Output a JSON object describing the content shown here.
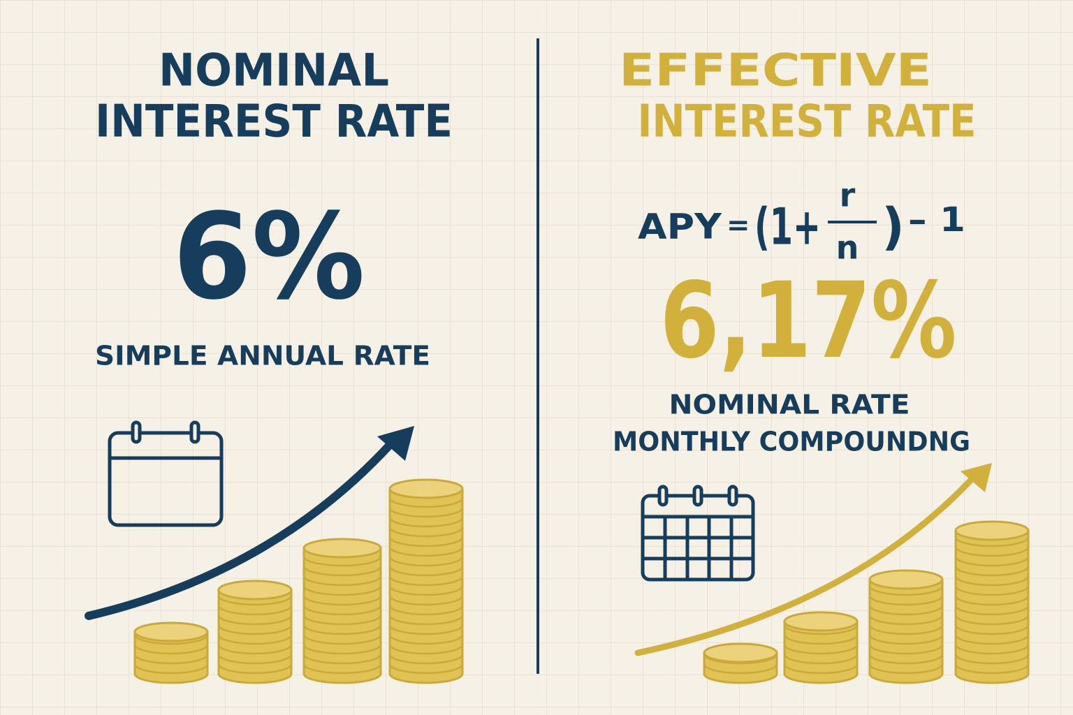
{
  "left": {
    "title": [
      "NOMINAL",
      "INTEREST RATE"
    ],
    "value": "6%",
    "caption": "SIMPLE ANNUAL RATE"
  },
  "right": {
    "title": [
      "EFFECTIVE",
      "INTEREST RATE"
    ],
    "formula": {
      "lhs": "APY",
      "equals": "=",
      "open": "(1+",
      "numerator": "r",
      "denominator": "n",
      "close": ")",
      "tail": "– 1"
    },
    "value": "6,17%",
    "caption": [
      "NOMINAL RATE",
      "MONTHLY COMPOUNDNG"
    ]
  }
}
